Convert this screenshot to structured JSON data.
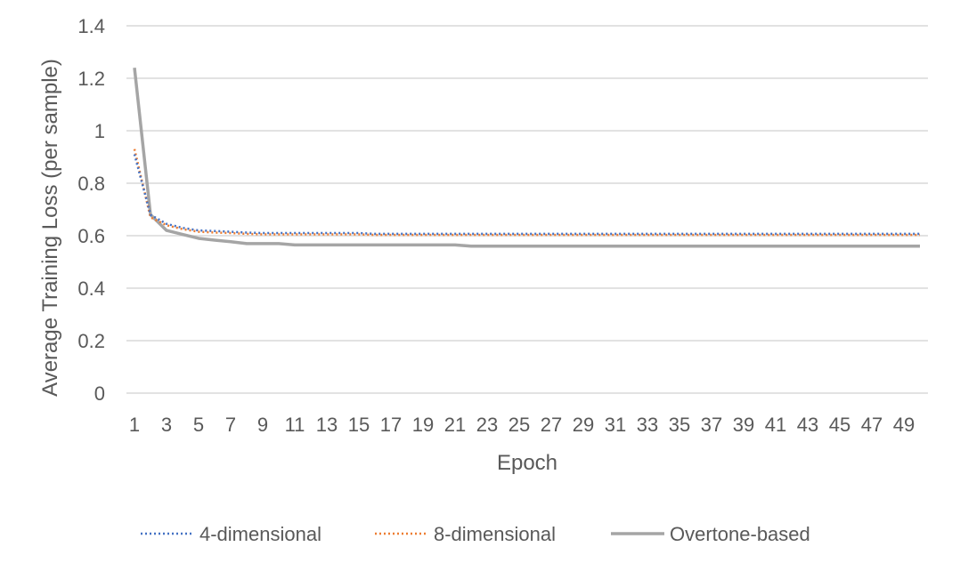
{
  "chart_data": {
    "type": "line",
    "xlabel": "Epoch",
    "ylabel": "Average Training Loss (per sample)",
    "x": [
      1,
      2,
      3,
      4,
      5,
      6,
      7,
      8,
      9,
      10,
      11,
      12,
      13,
      14,
      15,
      16,
      17,
      18,
      19,
      20,
      21,
      22,
      23,
      24,
      25,
      26,
      27,
      28,
      29,
      30,
      31,
      32,
      33,
      34,
      35,
      36,
      37,
      38,
      39,
      40,
      41,
      42,
      43,
      44,
      45,
      46,
      47,
      48,
      49,
      50
    ],
    "x_tick_labels": [
      "1",
      "3",
      "5",
      "7",
      "9",
      "11",
      "13",
      "15",
      "17",
      "19",
      "21",
      "23",
      "25",
      "27",
      "29",
      "31",
      "33",
      "35",
      "37",
      "39",
      "41",
      "43",
      "45",
      "47",
      "49"
    ],
    "ylim": [
      0,
      1.4
    ],
    "y_ticks": [
      0,
      0.2,
      0.4,
      0.6,
      0.8,
      1,
      1.2,
      1.4
    ],
    "y_tick_labels": [
      "0",
      "0.2",
      "0.4",
      "0.6",
      "0.8",
      "1",
      "1.2",
      "1.4"
    ],
    "grid": "horizontal",
    "legend_position": "bottom",
    "series": [
      {
        "name": "4-dimensional",
        "color": "#4472C4",
        "style": "dotted",
        "values": [
          0.91,
          0.68,
          0.645,
          0.63,
          0.62,
          0.618,
          0.615,
          0.612,
          0.61,
          0.61,
          0.61,
          0.61,
          0.61,
          0.61,
          0.61,
          0.607,
          0.607,
          0.607,
          0.607,
          0.607,
          0.607,
          0.607,
          0.607,
          0.607,
          0.607,
          0.607,
          0.607,
          0.607,
          0.607,
          0.607,
          0.607,
          0.607,
          0.607,
          0.607,
          0.607,
          0.607,
          0.607,
          0.607,
          0.607,
          0.607,
          0.607,
          0.607,
          0.607,
          0.607,
          0.607,
          0.607,
          0.607,
          0.607,
          0.607,
          0.607
        ]
      },
      {
        "name": "8-dimensional",
        "color": "#ED7D31",
        "style": "dotted",
        "values": [
          0.93,
          0.67,
          0.64,
          0.625,
          0.615,
          0.612,
          0.61,
          0.607,
          0.605,
          0.605,
          0.605,
          0.605,
          0.605,
          0.605,
          0.605,
          0.603,
          0.603,
          0.603,
          0.603,
          0.603,
          0.603,
          0.603,
          0.603,
          0.603,
          0.603,
          0.603,
          0.603,
          0.603,
          0.603,
          0.603,
          0.603,
          0.603,
          0.603,
          0.603,
          0.603,
          0.603,
          0.603,
          0.603,
          0.603,
          0.603,
          0.603,
          0.603,
          0.603,
          0.603,
          0.603,
          0.603,
          0.603,
          0.603,
          0.603,
          0.603
        ]
      },
      {
        "name": "Overtone-based",
        "color": "#A5A5A5",
        "style": "solid",
        "values": [
          1.24,
          0.68,
          0.62,
          0.605,
          0.59,
          0.583,
          0.577,
          0.57,
          0.57,
          0.57,
          0.565,
          0.565,
          0.565,
          0.565,
          0.565,
          0.565,
          0.565,
          0.565,
          0.565,
          0.565,
          0.565,
          0.56,
          0.56,
          0.56,
          0.56,
          0.56,
          0.56,
          0.56,
          0.56,
          0.56,
          0.56,
          0.56,
          0.56,
          0.56,
          0.56,
          0.56,
          0.56,
          0.56,
          0.56,
          0.56,
          0.56,
          0.56,
          0.56,
          0.56,
          0.56,
          0.56,
          0.56,
          0.56,
          0.56,
          0.56
        ]
      }
    ]
  }
}
